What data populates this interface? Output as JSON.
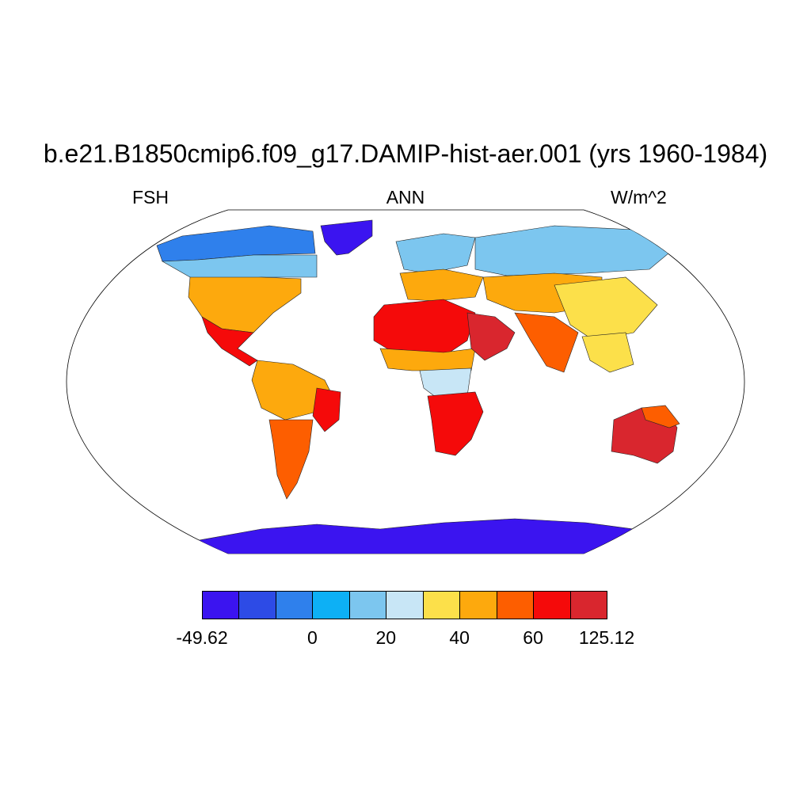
{
  "header": {
    "title": "b.e21.B1850cmip6.f09_g17.DAMIP-hist-aer.001 (yrs 1960-1984)",
    "left": "FSH",
    "center": "ANN",
    "right": "W/m^2"
  },
  "colorbar": {
    "colors": [
      "#3b14f0",
      "#2d4be6",
      "#2f80ec",
      "#0db0f5",
      "#7cc6ef",
      "#c8e6f6",
      "#fce04a",
      "#fda90d",
      "#fd5e00",
      "#f50a0a",
      "#d9262e"
    ],
    "labels": [
      {
        "text": "-49.62",
        "boundary": 0
      },
      {
        "text": "0",
        "boundary": 3
      },
      {
        "text": "20",
        "boundary": 5
      },
      {
        "text": "40",
        "boundary": 7
      },
      {
        "text": "60",
        "boundary": 9
      },
      {
        "text": "125.12",
        "boundary": 11
      }
    ]
  },
  "map_data": {
    "type": "filled-contour-map",
    "projection": "robinson",
    "variable": "FSH",
    "season": "ANN",
    "units": "W/m^2",
    "range": [
      -49.62,
      125.12
    ],
    "levels": [
      0,
      20,
      40,
      60
    ],
    "regions": [
      {
        "name": "greenland",
        "level": 0
      },
      {
        "name": "antarctica",
        "level": 0
      },
      {
        "name": "arctic-canada",
        "level": 2
      },
      {
        "name": "canada",
        "level": 4
      },
      {
        "name": "usa",
        "level": 7
      },
      {
        "name": "mexico",
        "level": 9
      },
      {
        "name": "amazon",
        "level": 7
      },
      {
        "name": "brazil-east",
        "level": 9
      },
      {
        "name": "patagonia",
        "level": 8
      },
      {
        "name": "europe-north",
        "level": 4
      },
      {
        "name": "europe-south",
        "level": 7
      },
      {
        "name": "sahara",
        "level": 9
      },
      {
        "name": "sahel",
        "level": 7
      },
      {
        "name": "central-africa",
        "level": 5
      },
      {
        "name": "southern-africa",
        "level": 9
      },
      {
        "name": "arabia",
        "level": 10
      },
      {
        "name": "siberia",
        "level": 4
      },
      {
        "name": "central-asia",
        "level": 7
      },
      {
        "name": "india",
        "level": 8
      },
      {
        "name": "china",
        "level": 6
      },
      {
        "name": "southeast-asia",
        "level": 6
      },
      {
        "name": "australia",
        "level": 10
      },
      {
        "name": "australia-north",
        "level": 8
      }
    ]
  }
}
